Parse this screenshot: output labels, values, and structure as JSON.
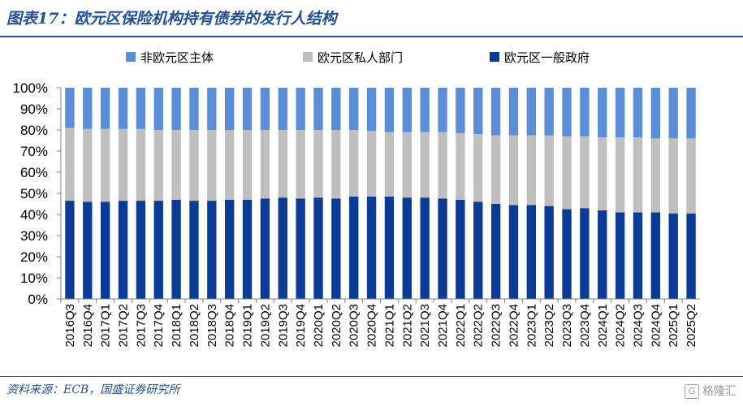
{
  "header": {
    "title": "图表17：欧元区保险机构持有债券的发行人结构"
  },
  "footer": {
    "source": "资料来源：ECB，国盛证券研究所",
    "watermark": "格隆汇"
  },
  "colors": {
    "accent": "#1f4e9c",
    "grid": "#d9d9d9",
    "axis": "#808080"
  },
  "chart_data": {
    "type": "bar",
    "stacked": true,
    "categories": [
      "2016Q3",
      "2016Q4",
      "2017Q1",
      "2017Q2",
      "2017Q3",
      "2017Q4",
      "2018Q1",
      "2018Q2",
      "2018Q3",
      "2018Q4",
      "2019Q1",
      "2019Q2",
      "2019Q3",
      "2019Q4",
      "2020Q1",
      "2020Q2",
      "2020Q3",
      "2020Q4",
      "2021Q1",
      "2021Q2",
      "2021Q3",
      "2021Q4",
      "2022Q1",
      "2022Q2",
      "2022Q3",
      "2022Q4",
      "2023Q1",
      "2023Q2",
      "2023Q3",
      "2023Q4",
      "2024Q1",
      "2024Q2",
      "2024Q3",
      "2024Q4",
      "2025Q1",
      "2025Q2"
    ],
    "y_ticks": [
      "0%",
      "10%",
      "20%",
      "30%",
      "40%",
      "50%",
      "60%",
      "70%",
      "80%",
      "90%",
      "100%"
    ],
    "ylim": [
      0,
      100
    ],
    "legend": {
      "position": "top"
    },
    "grid": false,
    "series": [
      {
        "name": "欧元区一般政府",
        "color": "#0c3b96",
        "values": [
          46.5,
          46,
          46,
          46.5,
          46.5,
          46.5,
          47,
          46.5,
          46.5,
          47,
          47,
          47.5,
          48,
          47.5,
          48,
          47.5,
          48.5,
          48.5,
          48.5,
          48,
          48,
          47.5,
          47,
          46,
          45,
          44.5,
          44.5,
          44,
          42.5,
          43,
          42,
          41,
          41,
          41,
          40.5,
          40.5
        ]
      },
      {
        "name": "欧元区私人部门",
        "color": "#bfbfbf",
        "values": [
          34.5,
          34.5,
          34.5,
          34,
          34,
          33.5,
          33,
          33.5,
          33.5,
          33,
          33,
          32.5,
          32,
          32.5,
          32,
          32.5,
          31.5,
          31,
          30.5,
          31,
          31,
          31.5,
          31.5,
          32,
          32.5,
          33,
          33,
          33.5,
          34.5,
          34,
          34.5,
          35.5,
          35.5,
          35,
          35.5,
          35.5
        ]
      },
      {
        "name": "非欧元区主体",
        "color": "#5b8ed6",
        "values": [
          19,
          19.5,
          19.5,
          19.5,
          19.5,
          20,
          20,
          20,
          20,
          20,
          20,
          20,
          20,
          20,
          20,
          20,
          20,
          20.5,
          21,
          21,
          21,
          21,
          21.5,
          22,
          22.5,
          22.5,
          22.5,
          22.5,
          23,
          23,
          23.5,
          23.5,
          23.5,
          24,
          24,
          24
        ]
      }
    ]
  }
}
